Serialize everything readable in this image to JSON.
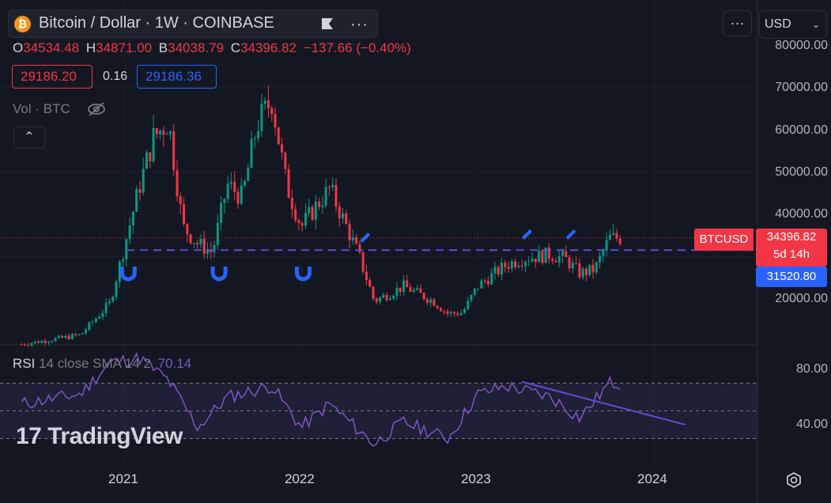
{
  "header": {
    "symbol_title": "Bitcoin / Dollar",
    "interval": "1W",
    "exchange": "COINBASE",
    "logo_glyph": "₿",
    "flag_icon": "flag-icon",
    "more_icon": "more-horizontal-icon"
  },
  "ohlc": {
    "o_label": "O",
    "o_value": "34534.48",
    "h_label": "H",
    "h_value": "34871.00",
    "l_label": "B",
    "l_value": "34038.79",
    "c_label": "C",
    "c_value": "34396.82",
    "change": "−137.66 (−0.40%)"
  },
  "indicator_values": {
    "box1": "29186.20",
    "mid": "0.16",
    "box2": "29186.36"
  },
  "volume": {
    "label": "Vol · BTC",
    "icon": "eye-crossed-icon"
  },
  "collapse": {
    "label": "⌃"
  },
  "toolbar": {
    "more_label": "···",
    "currency": "USD",
    "chevron": "⌄"
  },
  "price_axis": {
    "labels": [
      "80000.00",
      "70000.00",
      "60000.00",
      "50000.00",
      "40000.00",
      "20000.00"
    ],
    "symbol_tag": "BTCUSD",
    "last_price": "34396.82",
    "countdown": "5d 14h",
    "level_price": "31520.80"
  },
  "rsi": {
    "label": "RSI",
    "params": "14 close SMA 14 2",
    "value": "70.14",
    "axis_labels": [
      "80.00",
      "40.00"
    ]
  },
  "watermark": "TradingView",
  "time_axis": [
    "2021",
    "2022",
    "2023",
    "2024"
  ],
  "colors": {
    "up": "#089981",
    "down": "#f23645",
    "level": "#5b4fd6",
    "rsi_line": "#7e57c2",
    "background": "#131722",
    "blue": "#2962ff"
  },
  "chart_data": {
    "type": "candlestick",
    "interval": "1W",
    "symbol": "BTCUSD",
    "y_axis": {
      "min": 10000,
      "max": 80000
    },
    "x_axis": {
      "start": "2020-06",
      "end": "2024-06"
    },
    "horizontal_level": 31520.8,
    "last_close": 34396.82,
    "key_points": [
      {
        "date": "2020-06",
        "close": 9300
      },
      {
        "date": "2020-10",
        "close": 11500
      },
      {
        "date": "2020-12",
        "close": 19000
      },
      {
        "date": "2021-01",
        "close": 33000
      },
      {
        "date": "2021-02",
        "close": 47000
      },
      {
        "date": "2021-03",
        "close": 58000
      },
      {
        "date": "2021-04",
        "close": 62000
      },
      {
        "date": "2021-05",
        "close": 37000
      },
      {
        "date": "2021-06",
        "close": 33000
      },
      {
        "date": "2021-07",
        "close": 31000
      },
      {
        "date": "2021-08",
        "close": 47000
      },
      {
        "date": "2021-09",
        "close": 44000
      },
      {
        "date": "2021-10",
        "close": 61000
      },
      {
        "date": "2021-11",
        "close": 67000
      },
      {
        "date": "2021-12",
        "close": 47000
      },
      {
        "date": "2022-01",
        "close": 37000
      },
      {
        "date": "2022-02",
        "close": 42000
      },
      {
        "date": "2022-03",
        "close": 46000
      },
      {
        "date": "2022-04",
        "close": 38000
      },
      {
        "date": "2022-05",
        "close": 30000
      },
      {
        "date": "2022-06",
        "close": 19500
      },
      {
        "date": "2022-08",
        "close": 23000
      },
      {
        "date": "2022-10",
        "close": 19500
      },
      {
        "date": "2022-11",
        "close": 16500
      },
      {
        "date": "2022-12",
        "close": 16800
      },
      {
        "date": "2023-01",
        "close": 23000
      },
      {
        "date": "2023-03",
        "close": 28000
      },
      {
        "date": "2023-04",
        "close": 29500
      },
      {
        "date": "2023-06",
        "close": 30500
      },
      {
        "date": "2023-07",
        "close": 29500
      },
      {
        "date": "2023-08",
        "close": 26000
      },
      {
        "date": "2023-09",
        "close": 27000
      },
      {
        "date": "2023-10",
        "close": 34400
      }
    ],
    "rsi_series": {
      "name": "RSI",
      "params": "14 close SMA 14 2",
      "last": 70.14,
      "y_axis": {
        "min": 20,
        "max": 100
      },
      "bands": [
        70,
        30
      ],
      "key_points": [
        {
          "date": "2020-06",
          "value": 55
        },
        {
          "date": "2020-10",
          "value": 62
        },
        {
          "date": "2020-12",
          "value": 85
        },
        {
          "date": "2021-02",
          "value": 88
        },
        {
          "date": "2021-04",
          "value": 72
        },
        {
          "date": "2021-06",
          "value": 38
        },
        {
          "date": "2021-08",
          "value": 60
        },
        {
          "date": "2021-11",
          "value": 68
        },
        {
          "date": "2022-01",
          "value": 38
        },
        {
          "date": "2022-03",
          "value": 55
        },
        {
          "date": "2022-06",
          "value": 26
        },
        {
          "date": "2022-08",
          "value": 42
        },
        {
          "date": "2022-11",
          "value": 30
        },
        {
          "date": "2023-01",
          "value": 62
        },
        {
          "date": "2023-03",
          "value": 68
        },
        {
          "date": "2023-06",
          "value": 60
        },
        {
          "date": "2023-08",
          "value": 45
        },
        {
          "date": "2023-10",
          "value": 70
        }
      ]
    }
  }
}
